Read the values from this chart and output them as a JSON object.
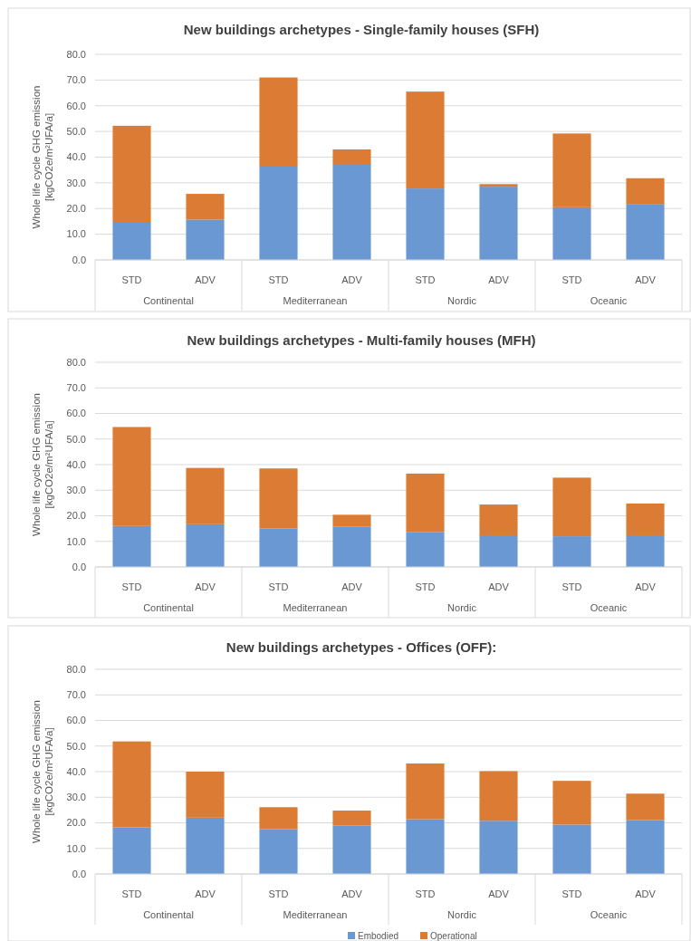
{
  "chart_data": [
    {
      "type": "bar",
      "stacked": true,
      "title": "New buildings archetypes - Single-family houses (SFH)",
      "ylabel": "Whole life cycle GHG emission\n[kgCO2e/m²UFA/a]",
      "categories": [
        "STD",
        "ADV",
        "STD",
        "ADV",
        "STD",
        "ADV",
        "STD",
        "ADV"
      ],
      "annotations": [
        "Continental",
        "Mediterranean",
        "Nordic",
        "Oceanic"
      ],
      "ylim": [
        0,
        80
      ],
      "yticks": [
        {
          "value": 0,
          "label": "0.0"
        },
        {
          "value": 10,
          "label": "10.0"
        },
        {
          "value": 20,
          "label": "20.0"
        },
        {
          "value": 30,
          "label": "30.0"
        },
        {
          "value": 40,
          "label": "40.0"
        },
        {
          "value": 50,
          "label": "50.0"
        },
        {
          "value": 60,
          "label": "60.0"
        },
        {
          "value": 70,
          "label": "70.0"
        },
        {
          "value": 80,
          "label": "80.0"
        }
      ],
      "grid": "y",
      "series": [
        {
          "color": "#6a98d2",
          "values": [
            14.8,
            15.7,
            36.3,
            37.0,
            27.8,
            28.5,
            20.5,
            21.8
          ]
        },
        {
          "color": "#dc7b33",
          "values": [
            37.4,
            10.0,
            34.7,
            6.0,
            37.7,
            1.0,
            28.7,
            10.0
          ]
        }
      ]
    },
    {
      "type": "bar",
      "stacked": true,
      "title": "New buildings archetypes - Multi-family houses (MFH)",
      "ylabel": "Whole life cycle GHG emission\n[kgCO2e/m²UFA/a]",
      "categories": [
        "STD",
        "ADV",
        "STD",
        "ADV",
        "STD",
        "ADV",
        "STD",
        "ADV"
      ],
      "annotations": [
        "Continental",
        "Mediterranean",
        "Nordic",
        "Oceanic"
      ],
      "ylim": [
        0,
        80
      ],
      "yticks": [
        {
          "value": 0,
          "label": "0.0"
        },
        {
          "value": 10,
          "label": "10.0"
        },
        {
          "value": 20,
          "label": "20.0"
        },
        {
          "value": 30,
          "label": "30.0"
        },
        {
          "value": 40,
          "label": "40.0"
        },
        {
          "value": 50,
          "label": "50.0"
        },
        {
          "value": 60,
          "label": "60.0"
        },
        {
          "value": 70,
          "label": "70.0"
        },
        {
          "value": 80,
          "label": "80.0"
        }
      ],
      "grid": "y",
      "series": [
        {
          "color": "#6a98d2",
          "values": [
            16.0,
            16.7,
            15.0,
            15.7,
            13.7,
            12.4,
            12.0,
            12.4
          ]
        },
        {
          "color": "#dc7b33",
          "values": [
            38.7,
            22.0,
            23.5,
            4.7,
            22.8,
            12.0,
            22.9,
            12.4
          ]
        }
      ]
    },
    {
      "type": "bar",
      "stacked": true,
      "title": "New buildings archetypes - Offices (OFF):",
      "ylabel": "Whole life cycle GHG emission\n[kgCO2e/m²UFA/a]",
      "categories": [
        "STD",
        "ADV",
        "STD",
        "ADV",
        "STD",
        "ADV",
        "STD",
        "ADV"
      ],
      "annotations": [
        "Continental",
        "Mediterranean",
        "Nordic",
        "Oceanic"
      ],
      "ylim": [
        0,
        80
      ],
      "yticks": [
        {
          "value": 0,
          "label": "0.0"
        },
        {
          "value": 10,
          "label": "10.0"
        },
        {
          "value": 20,
          "label": "20.0"
        },
        {
          "value": 30,
          "label": "30.0"
        },
        {
          "value": 40,
          "label": "40.0"
        },
        {
          "value": 50,
          "label": "50.0"
        },
        {
          "value": 60,
          "label": "60.0"
        },
        {
          "value": 70,
          "label": "70.0"
        },
        {
          "value": 80,
          "label": "80.0"
        }
      ],
      "grid": "y",
      "legend": "bottom",
      "series": [
        {
          "name": "Embodied",
          "color": "#6a98d2",
          "values": [
            18.2,
            22.0,
            17.5,
            19.0,
            21.4,
            20.8,
            19.3,
            21.1
          ]
        },
        {
          "name": "Operational",
          "color": "#dc7b33",
          "values": [
            33.6,
            18.0,
            8.6,
            5.8,
            21.8,
            19.4,
            17.1,
            10.3
          ]
        }
      ]
    }
  ]
}
